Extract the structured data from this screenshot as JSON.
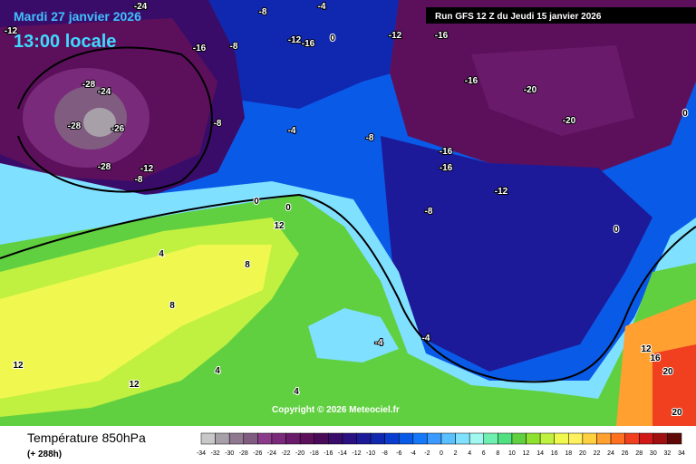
{
  "header": {
    "date": "Mardi 27 janvier 2026",
    "time": "13:00 locale",
    "run": "Run GFS 12 Z du Jeudi 15 janvier 2026"
  },
  "copyright": "Copyright © 2026 Meteociel.fr",
  "legend": {
    "title": "Température 850hPa",
    "subtitle": "(+ 288h)",
    "ticks": [
      -34,
      -32,
      -30,
      -28,
      -26,
      -24,
      -22,
      -20,
      -18,
      -16,
      -14,
      -12,
      -10,
      -8,
      -6,
      -4,
      -2,
      0,
      2,
      4,
      6,
      8,
      10,
      12,
      14,
      16,
      18,
      20,
      22,
      24,
      26,
      28,
      30,
      32,
      34
    ],
    "colors": [
      "#c8c8c8",
      "#a8a0a8",
      "#907890",
      "#805c80",
      "#8a3c8a",
      "#7a2a7a",
      "#6a1a6a",
      "#5c105c",
      "#4a0a5a",
      "#3a0c6a",
      "#2a1080",
      "#1c1a98",
      "#1028b0",
      "#0a3cd0",
      "#0a5ae8",
      "#1478f8",
      "#3a9aff",
      "#5ac0ff",
      "#80e0ff",
      "#a0f8f0",
      "#70f0b0",
      "#50e080",
      "#60d040",
      "#90e030",
      "#c0f040",
      "#f0f850",
      "#fff060",
      "#ffd040",
      "#ffa030",
      "#ff7020",
      "#f04020",
      "#d01818",
      "#a01010",
      "#600808"
    ]
  },
  "map_labels": [
    "-24",
    "-12",
    "-8",
    "-4",
    "-16",
    "-8",
    "-12",
    "-16",
    "0",
    "-12",
    "-16",
    "-16",
    "-20",
    "-20",
    "-28",
    "-24",
    "-28",
    "-26",
    "-28",
    "-12",
    "-8",
    "-8",
    "-4",
    "-8",
    "-16",
    "-16",
    "-12",
    "-8",
    "0",
    "0",
    "12",
    "4",
    "8",
    "8",
    "12",
    "12",
    "4",
    "4",
    "-4",
    "-4",
    "0",
    "12",
    "16",
    "20",
    "20",
    "0"
  ]
}
